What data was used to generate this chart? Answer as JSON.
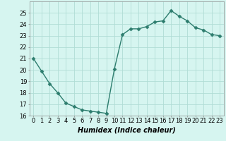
{
  "x": [
    0,
    1,
    2,
    3,
    4,
    5,
    6,
    7,
    8,
    9,
    10,
    11,
    12,
    13,
    14,
    15,
    16,
    17,
    18,
    19,
    20,
    21,
    22,
    23
  ],
  "y": [
    21.0,
    19.9,
    18.8,
    18.0,
    17.1,
    16.8,
    16.5,
    16.4,
    16.3,
    16.2,
    20.1,
    23.1,
    23.6,
    23.6,
    23.8,
    24.2,
    24.3,
    25.2,
    24.7,
    24.3,
    23.7,
    23.5,
    23.1,
    23.0
  ],
  "line_color": "#2d7d6e",
  "marker": "D",
  "marker_size": 2.5,
  "bg_color": "#d6f5f0",
  "grid_color": "#b0ddd5",
  "xlabel": "Humidex (Indice chaleur)",
  "ylim": [
    16,
    26
  ],
  "xlim": [
    -0.5,
    23.5
  ],
  "yticks": [
    16,
    17,
    18,
    19,
    20,
    21,
    22,
    23,
    24,
    25
  ],
  "xticks": [
    0,
    1,
    2,
    3,
    4,
    5,
    6,
    7,
    8,
    9,
    10,
    11,
    12,
    13,
    14,
    15,
    16,
    17,
    18,
    19,
    20,
    21,
    22,
    23
  ],
  "xlabel_fontsize": 7,
  "tick_fontsize": 6,
  "line_width": 1.0
}
